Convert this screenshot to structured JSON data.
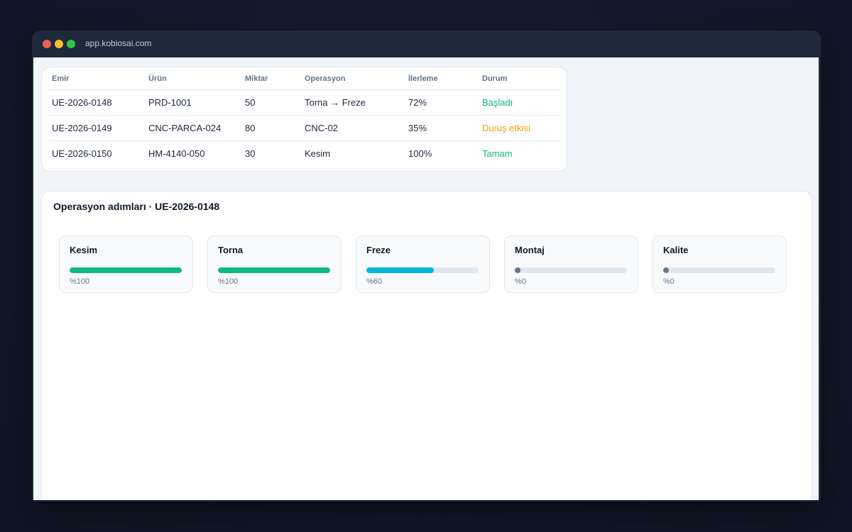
{
  "browser": {
    "url": "app.kobiosai.com"
  },
  "orders_table": {
    "columns": [
      "Emir",
      "Ürün",
      "Miktar",
      "Operasyon",
      "İlerleme",
      "Durum"
    ],
    "rows": [
      {
        "emir": "UE-2026-0148",
        "urun": "PRD-1001",
        "miktar": "50",
        "operasyon": "Torna → Freze",
        "ilerleme": "72%",
        "durum": "Başladı",
        "durum_color": "#10b981"
      },
      {
        "emir": "UE-2026-0149",
        "urun": "CNC-PARCA-024",
        "miktar": "80",
        "operasyon": "CNC-02",
        "ilerleme": "35%",
        "durum": "Duruş etkisi",
        "durum_color": "#f59e0b"
      },
      {
        "emir": "UE-2026-0150",
        "urun": "HM-4140-050",
        "miktar": "30",
        "operasyon": "Kesim",
        "ilerleme": "100%",
        "durum": "Tamam",
        "durum_color": "#10b981"
      }
    ]
  },
  "steps_panel": {
    "title": "Operasyon adımları · UE-2026-0148",
    "steps": [
      {
        "name": "Kesim",
        "progress": 100,
        "label": "%100",
        "color": "#10b981"
      },
      {
        "name": "Torna",
        "progress": 100,
        "label": "%100",
        "color": "#10b981"
      },
      {
        "name": "Freze",
        "progress": 60,
        "label": "%60",
        "color": "#06b6d4"
      },
      {
        "name": "Montaj",
        "progress": 0,
        "label": "%0",
        "color": "#64748b"
      },
      {
        "name": "Kalite",
        "progress": 0,
        "label": "%0",
        "color": "#64748b"
      }
    ]
  }
}
